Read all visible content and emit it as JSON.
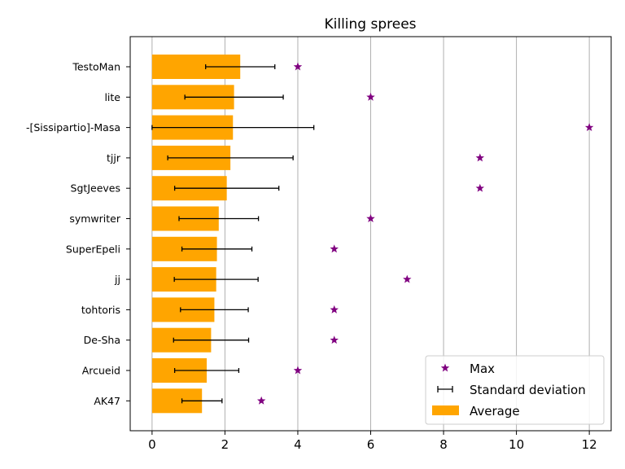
{
  "chart_data": {
    "type": "bar",
    "orientation": "horizontal",
    "title": "Killing sprees",
    "xlabel": "",
    "ylabel": "",
    "xlim": [
      -0.6,
      12.6
    ],
    "xticks": [
      0,
      2,
      4,
      6,
      8,
      10,
      12
    ],
    "grid": "vertical",
    "legend_position": "bottom-right",
    "categories": [
      "TestoMan",
      "lite",
      "-[Sissipartio]-Masa",
      "tjjr",
      "SgtJeeves",
      "symwriter",
      "SuperEpeli",
      "jj",
      "tohtoris",
      "De-Sha",
      "Arcueid",
      "AK47"
    ],
    "series": [
      {
        "name": "Average",
        "kind": "bar",
        "color": "#ffa500",
        "values": [
          2.42,
          2.25,
          2.22,
          2.15,
          2.05,
          1.83,
          1.78,
          1.76,
          1.71,
          1.62,
          1.5,
          1.37
        ]
      },
      {
        "name": "Standard deviation",
        "kind": "errorbar",
        "color": "#000000",
        "values": [
          0.95,
          1.35,
          2.22,
          1.72,
          1.43,
          1.09,
          0.96,
          1.15,
          0.93,
          1.03,
          0.88,
          0.55
        ]
      },
      {
        "name": "Max",
        "kind": "scatter",
        "color": "#800080",
        "marker": "star",
        "values": [
          4,
          6,
          12,
          9,
          9,
          6,
          5,
          7,
          5,
          5,
          4,
          3
        ]
      }
    ]
  }
}
